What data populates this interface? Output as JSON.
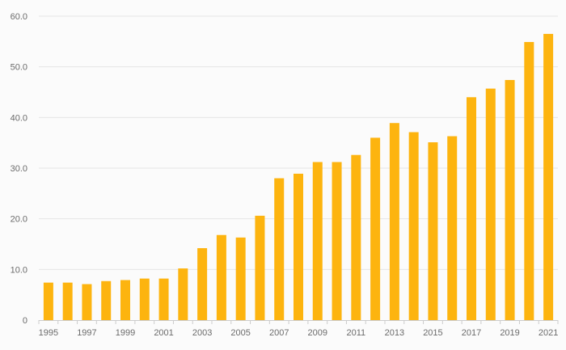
{
  "chart_data": {
    "type": "bar",
    "categories": [
      "1995",
      "1996",
      "1997",
      "1998",
      "1999",
      "2000",
      "2001",
      "2002",
      "2003",
      "2004",
      "2005",
      "2006",
      "2007",
      "2008",
      "2009",
      "2010",
      "2011",
      "2012",
      "2013",
      "2014",
      "2015",
      "2016",
      "2017",
      "2018",
      "2019",
      "2020",
      "2021"
    ],
    "values": [
      7.4,
      7.4,
      7.1,
      7.7,
      7.9,
      8.2,
      8.2,
      10.2,
      14.2,
      16.8,
      16.3,
      20.6,
      28.0,
      28.9,
      31.2,
      31.2,
      32.6,
      36.0,
      38.9,
      37.1,
      35.1,
      36.3,
      44.0,
      45.7,
      47.4,
      54.9,
      56.5
    ],
    "x_tick_labels": [
      "1995",
      "1997",
      "1999",
      "2001",
      "2003",
      "2005",
      "2007",
      "2009",
      "2011",
      "2013",
      "2015",
      "2017",
      "2019",
      "2021"
    ],
    "y_tick_labels": [
      "0",
      "10.0",
      "20.0",
      "30.0",
      "40.0",
      "50.0",
      "60.0"
    ],
    "ylim": [
      0,
      60
    ],
    "title": "",
    "xlabel": "",
    "ylabel": "",
    "grid": true,
    "legend": "none",
    "bar_color": "#fdb40f",
    "grid_color": "#e6e6e6",
    "axis_color": "#cccccc"
  }
}
